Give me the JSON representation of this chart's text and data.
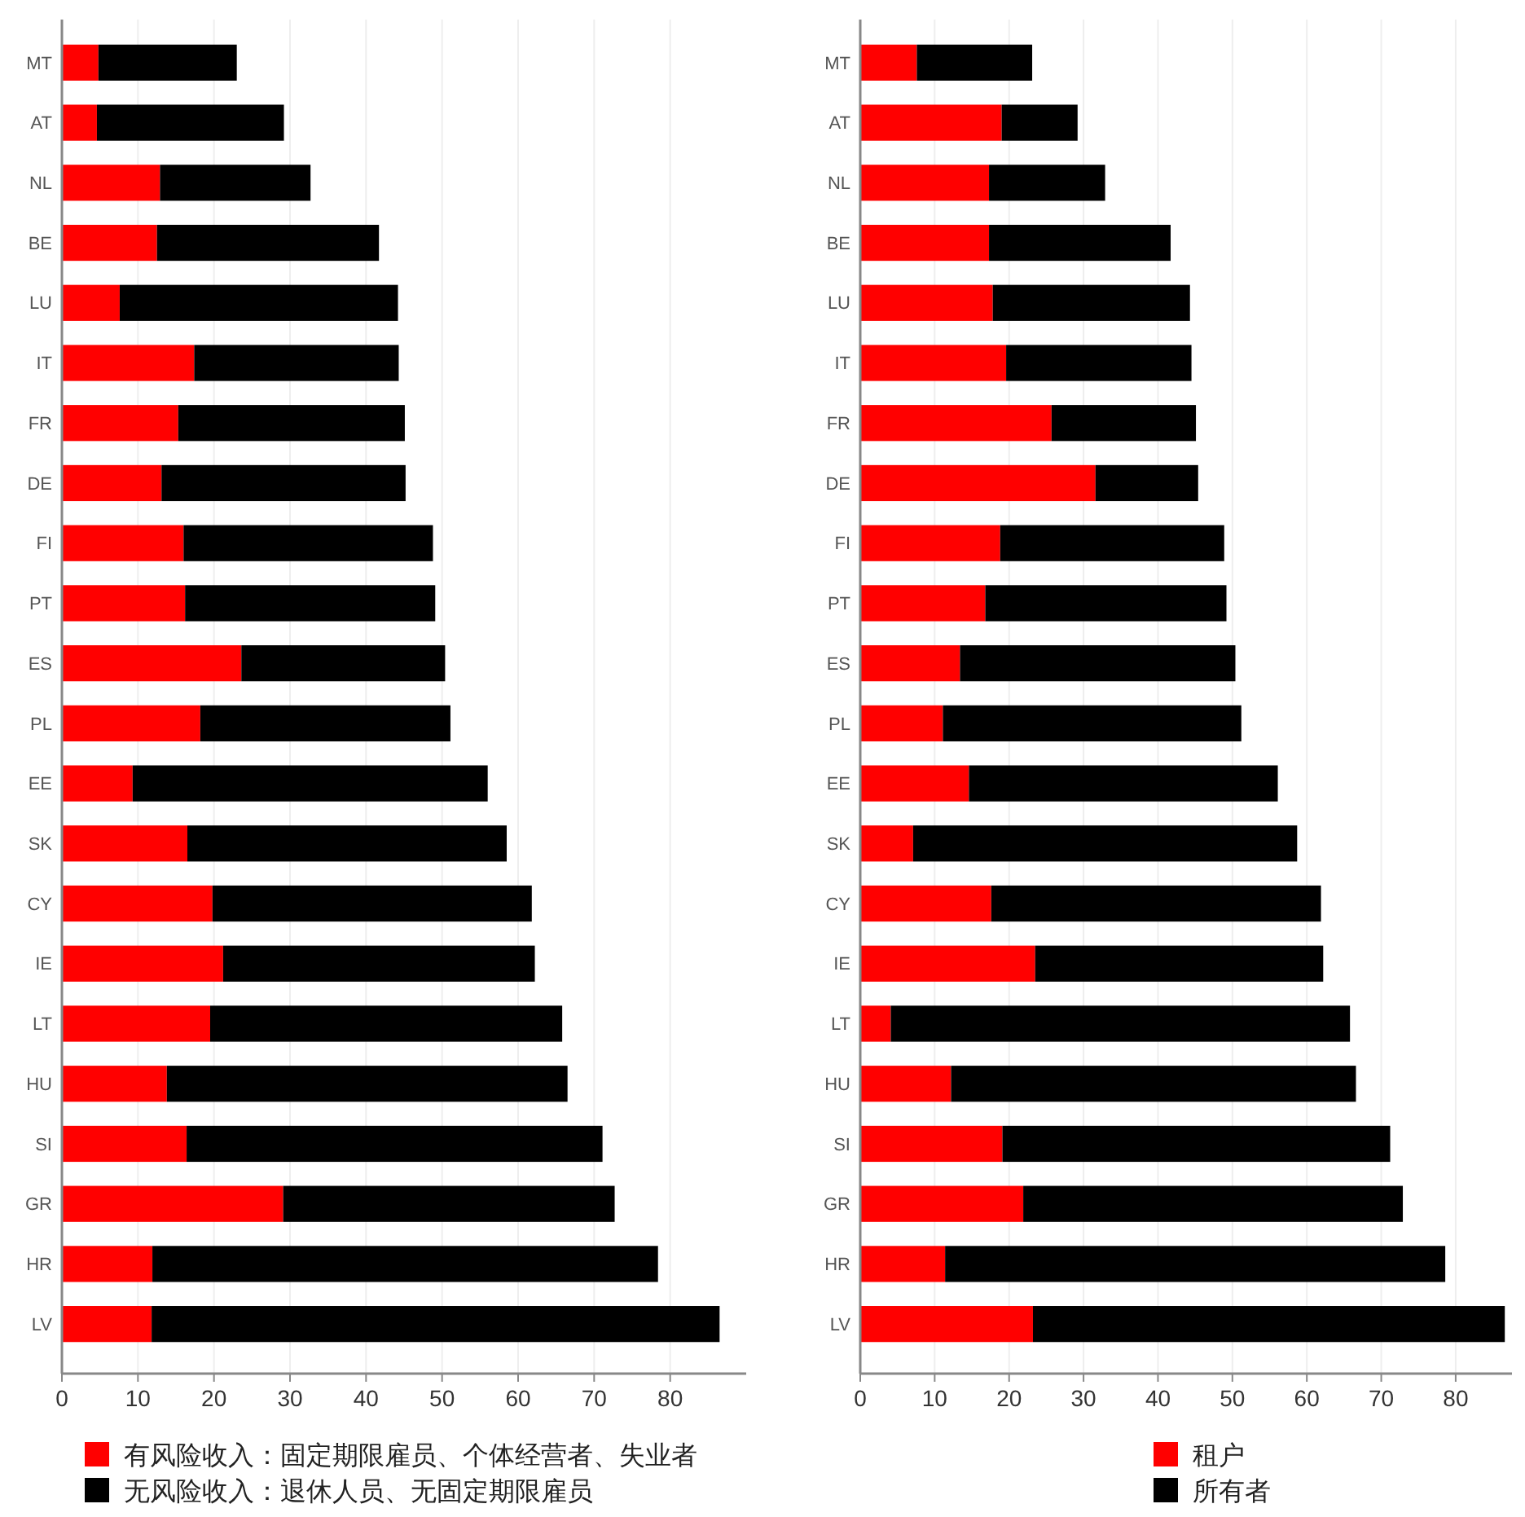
{
  "chart_data": [
    {
      "type": "bar",
      "orientation": "horizontal",
      "stacked": true,
      "categories": [
        "MT",
        "AT",
        "NL",
        "BE",
        "LU",
        "IT",
        "FR",
        "DE",
        "FI",
        "PT",
        "ES",
        "PL",
        "EE",
        "SK",
        "CY",
        "IE",
        "LT",
        "HU",
        "SI",
        "GR",
        "HR",
        "LV"
      ],
      "xlim": [
        0,
        90
      ],
      "xticks": [
        0,
        10,
        20,
        30,
        40,
        50,
        60,
        70,
        80
      ],
      "grid": "x",
      "legend": "bottom left",
      "series": [
        {
          "name": "有风险收入：固定期限雇员、个体经营者、失业者",
          "color": "#ff0000",
          "values": [
            4.8,
            4.6,
            12.9,
            12.5,
            7.6,
            17.4,
            15.3,
            13.1,
            16.0,
            16.2,
            23.6,
            18.2,
            9.3,
            16.5,
            19.8,
            21.2,
            19.5,
            13.8,
            16.4,
            29.1,
            11.9,
            11.8
          ]
        },
        {
          "name": "无风险收入：退休人员、无固定期限雇员",
          "color": "#000000",
          "values": [
            18.2,
            24.6,
            19.8,
            29.2,
            36.6,
            26.9,
            29.8,
            32.1,
            32.8,
            32.9,
            26.8,
            32.9,
            46.7,
            42.0,
            42.0,
            41.0,
            46.3,
            52.7,
            54.7,
            43.6,
            66.5,
            74.7
          ]
        }
      ]
    },
    {
      "type": "bar",
      "orientation": "horizontal",
      "stacked": true,
      "categories": [
        "MT",
        "AT",
        "NL",
        "BE",
        "LU",
        "IT",
        "FR",
        "DE",
        "FI",
        "PT",
        "ES",
        "PL",
        "EE",
        "SK",
        "CY",
        "IE",
        "LT",
        "HU",
        "SI",
        "GR",
        "HR",
        "LV"
      ],
      "xlim": [
        0,
        88
      ],
      "xticks": [
        0,
        10,
        20,
        30,
        40,
        50,
        60,
        70,
        80
      ],
      "grid": "x",
      "legend": "bottom right",
      "series": [
        {
          "name": "租户",
          "color": "#ff0000",
          "values": [
            7.6,
            19.0,
            17.3,
            17.3,
            17.8,
            19.6,
            25.7,
            31.6,
            18.8,
            16.8,
            13.4,
            11.1,
            14.6,
            7.1,
            17.6,
            23.5,
            4.1,
            12.2,
            19.1,
            21.9,
            11.4,
            23.2
          ]
        },
        {
          "name": "所有者",
          "color": "#000000",
          "values": [
            15.5,
            10.2,
            15.6,
            24.4,
            26.5,
            24.9,
            19.4,
            13.8,
            30.1,
            32.4,
            37.0,
            40.1,
            41.5,
            51.6,
            44.3,
            38.7,
            61.7,
            54.4,
            52.1,
            51.0,
            67.2,
            63.4
          ]
        }
      ]
    }
  ]
}
